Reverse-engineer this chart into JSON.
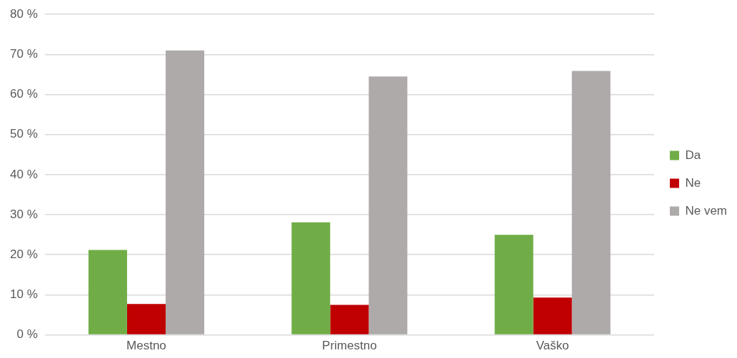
{
  "chart_data": {
    "type": "bar",
    "categories": [
      "Mestno",
      "Primestno",
      "Vaško"
    ],
    "series": [
      {
        "name": "Da",
        "color": "#70ad47",
        "values": [
          21.2,
          28.1,
          25.0
        ]
      },
      {
        "name": "Ne",
        "color": "#c00000",
        "values": [
          7.7,
          7.5,
          9.3
        ]
      },
      {
        "name": "Ne vem",
        "color": "#aeaaaa",
        "values": [
          71.0,
          64.5,
          65.9
        ]
      }
    ],
    "ylim": [
      0,
      80
    ],
    "yticks": [
      {
        "value": 0,
        "label": "0 %"
      },
      {
        "value": 10,
        "label": "10 %"
      },
      {
        "value": 20,
        "label": "20 %"
      },
      {
        "value": 30,
        "label": "30 %"
      },
      {
        "value": 40,
        "label": "40 %"
      },
      {
        "value": 50,
        "label": "50 %"
      },
      {
        "value": 60,
        "label": "60 %"
      },
      {
        "value": 70,
        "label": "70 %"
      },
      {
        "value": 80,
        "label": "80 %"
      }
    ],
    "grid": "y",
    "legend": "right"
  }
}
